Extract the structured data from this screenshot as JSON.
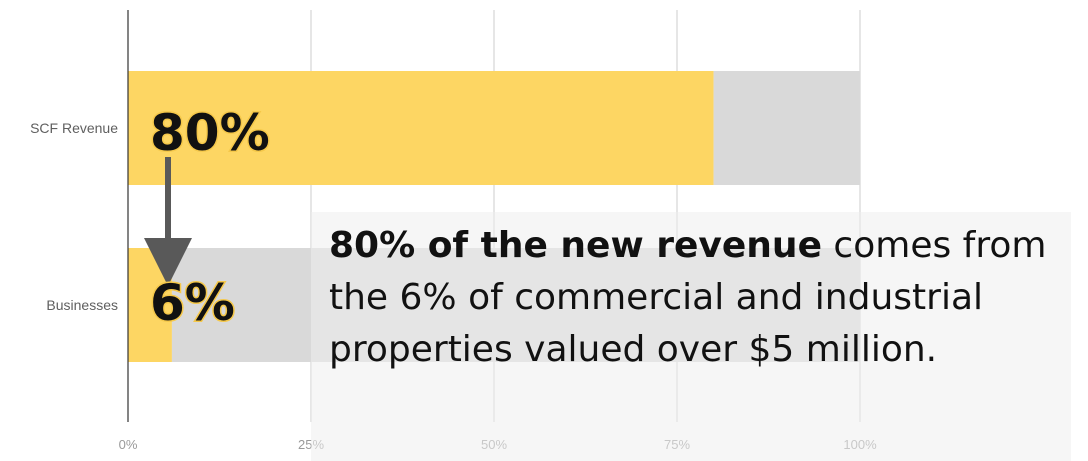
{
  "chart_data": {
    "type": "bar",
    "orientation": "horizontal",
    "stacked_to_100": true,
    "categories": [
      "SCF Revenue",
      "Businesses"
    ],
    "series": [
      {
        "values": [
          80,
          6
        ],
        "color": "#fdd663"
      },
      {
        "values": [
          20,
          94
        ],
        "color": "#d9d9d9"
      }
    ],
    "xlim": [
      0,
      100
    ],
    "xticks": [
      "0%",
      "25%",
      "50%",
      "75%",
      "100%"
    ],
    "grid": true,
    "annotations": [
      {
        "text": "80%",
        "category": "SCF Revenue"
      },
      {
        "text": "6%",
        "category": "Businesses"
      }
    ]
  },
  "callout": {
    "bold": "80% of the new revenue",
    "rest": " comes from the 6% of commercial and industrial properties valued over $5 million."
  }
}
